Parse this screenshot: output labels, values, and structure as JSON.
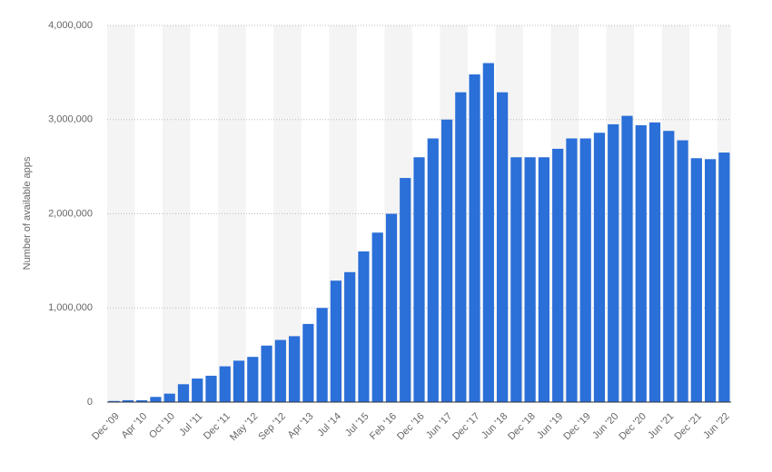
{
  "chart_data": {
    "type": "bar",
    "y_label": "Number of available apps",
    "categories": [
      "Dec '09",
      null,
      "Apr '10",
      null,
      "Oct '10",
      null,
      "Jul '11",
      null,
      "Dec '11",
      null,
      "May '12",
      null,
      "Sep '12",
      null,
      "Apr '13",
      null,
      "Jul '14",
      null,
      "Jul '15",
      null,
      "Feb '16",
      null,
      "Dec '16",
      null,
      "Jun '17",
      null,
      "Dec '17",
      null,
      "Jun '18",
      null,
      "Dec '18",
      null,
      "Jun '19",
      null,
      "Dec '19",
      null,
      "Jun '20",
      null,
      "Dec '20",
      null,
      "Jun '21",
      null,
      "Dec '21",
      null,
      "Jun '22"
    ],
    "values": [
      12000,
      20000,
      20000,
      55000,
      90000,
      190000,
      250000,
      280000,
      380000,
      440000,
      480000,
      600000,
      660000,
      700000,
      830000,
      1000000,
      1290000,
      1380000,
      1600000,
      1800000,
      2000000,
      2380000,
      2600000,
      2800000,
      3000000,
      3290000,
      3480000,
      3600000,
      3290000,
      2600000,
      2600000,
      2600000,
      2690000,
      2800000,
      2800000,
      2860000,
      2950000,
      3040000,
      2940000,
      2970000,
      2880000,
      2780000,
      2590000,
      2580000,
      2650000
    ],
    "color": "#2b6fd8",
    "ylim": [
      0,
      4000000
    ],
    "yticks": [
      0,
      {
        "value": 1000000,
        "label": "1,000,000"
      },
      {
        "value": 2000000,
        "label": "2,000,000"
      },
      {
        "value": 3000000,
        "label": "3,000,000"
      },
      {
        "value": 4000000,
        "label": "4,000,000"
      }
    ],
    "grid": true
  }
}
